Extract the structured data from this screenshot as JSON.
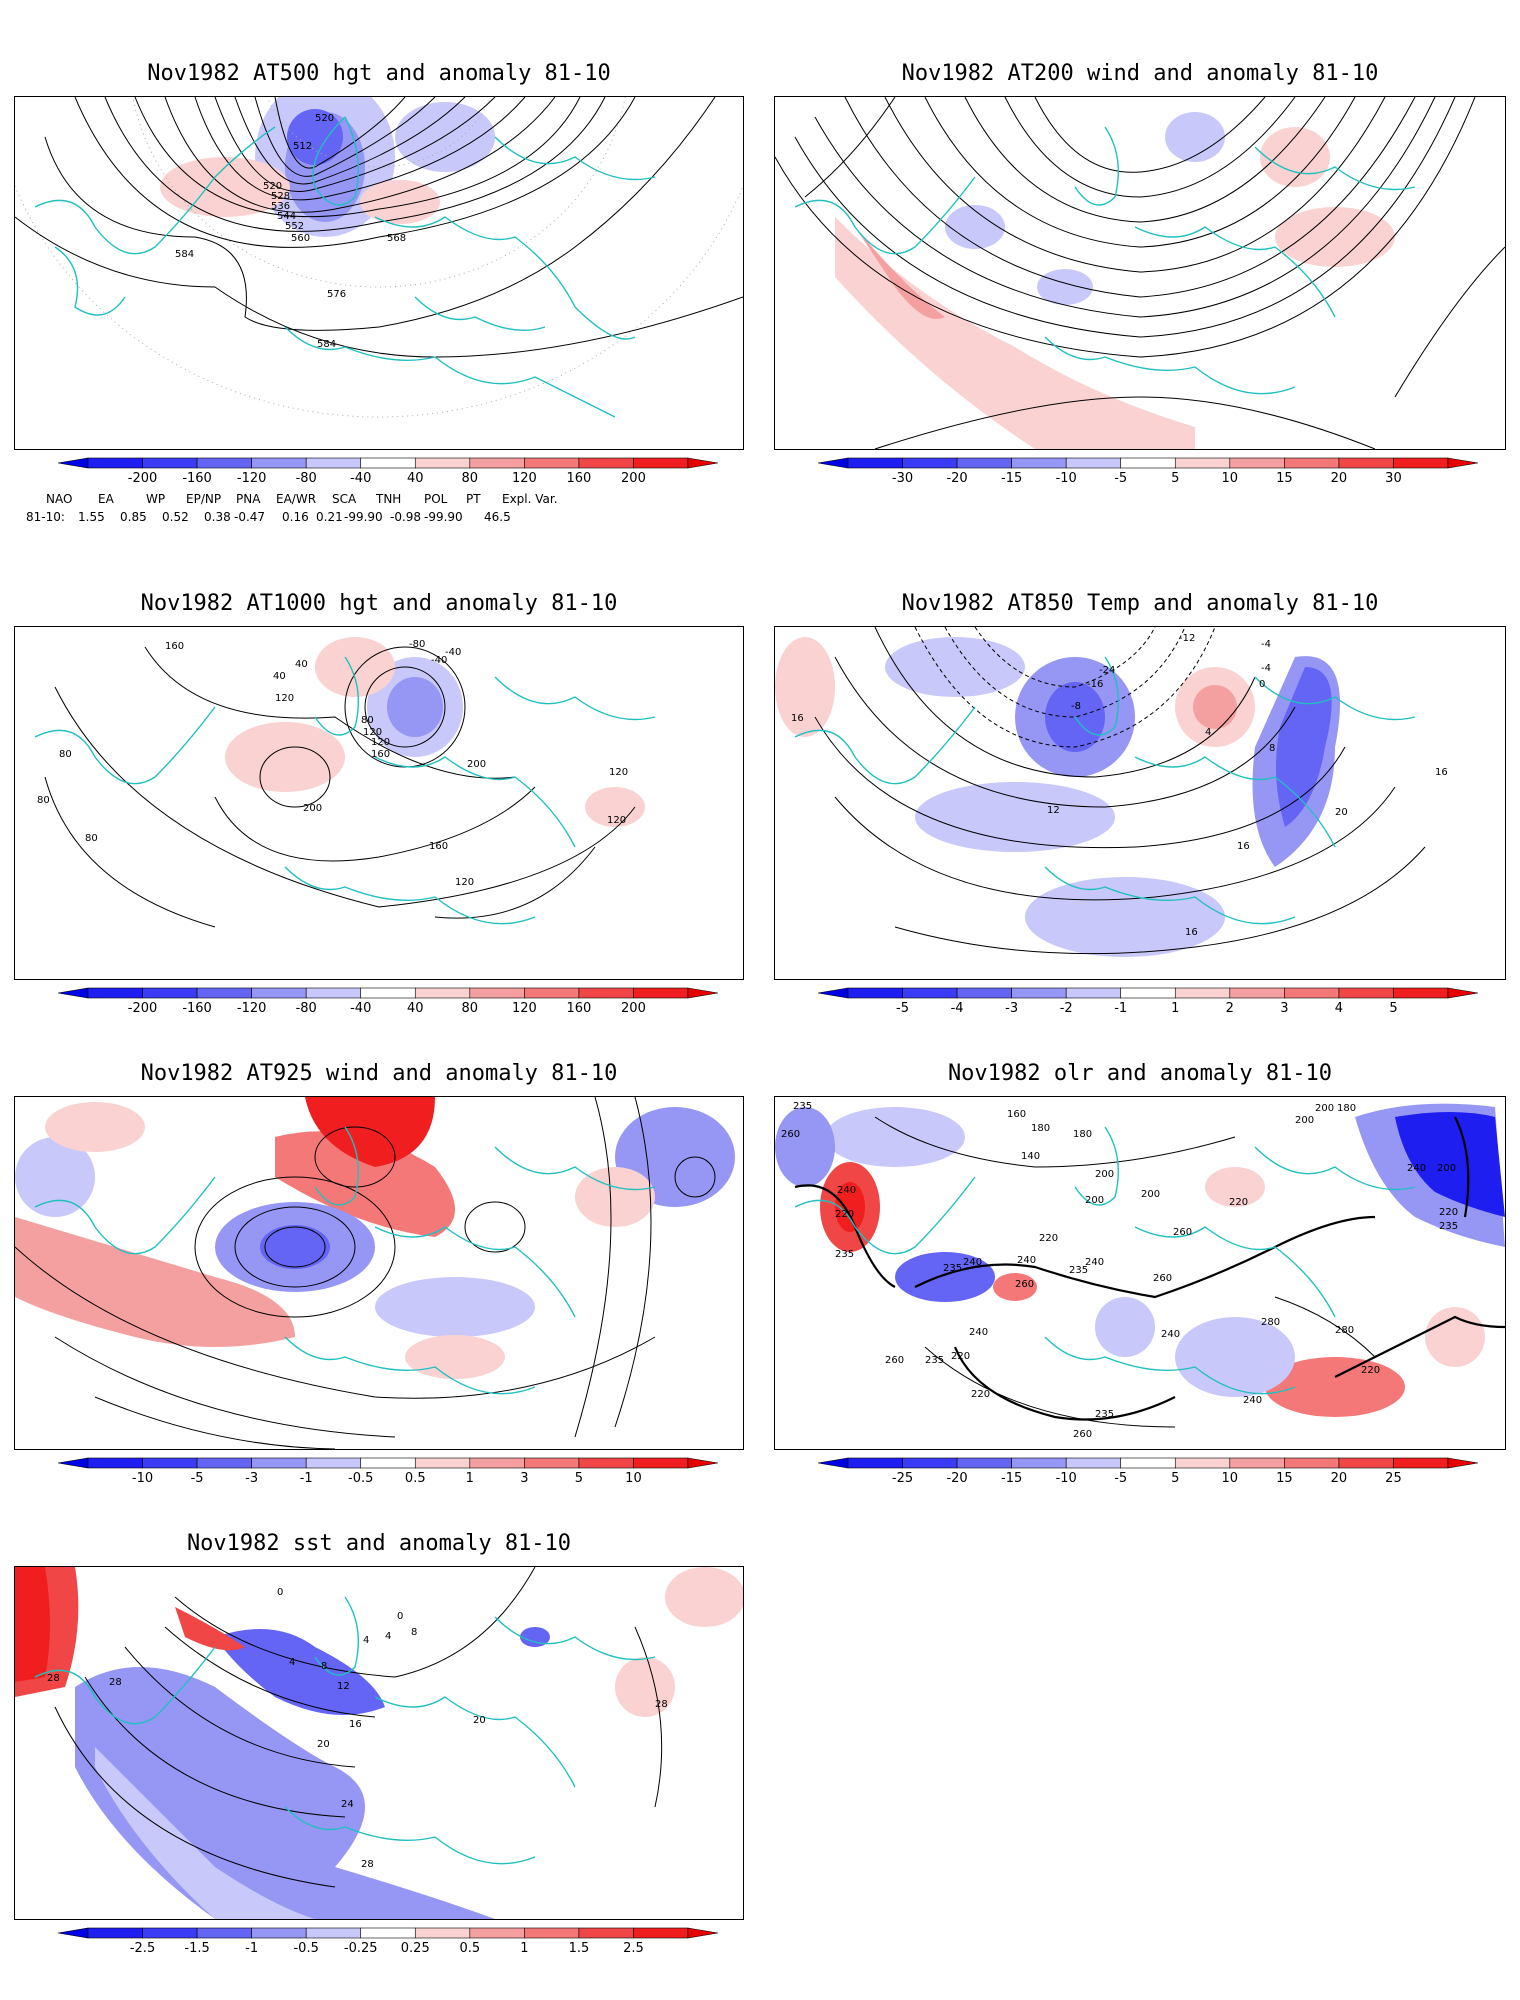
{
  "panels": [
    {
      "id": "p1",
      "title": "Nov1982 AT500 hgt and anomaly 81-10",
      "contour_labels": [
        "520",
        "512",
        "520",
        "528",
        "536",
        "544",
        "552",
        "560",
        "568",
        "584",
        "576",
        "584"
      ],
      "colorbar": [
        "-200",
        "-160",
        "-120",
        "-80",
        "-40",
        "40",
        "80",
        "120",
        "160",
        "200"
      ]
    },
    {
      "id": "p2",
      "title": "Nov1982 AT200 wind and anomaly 81-10",
      "contour_labels": [],
      "colorbar": [
        "-30",
        "-20",
        "-15",
        "-10",
        "-5",
        "5",
        "10",
        "15",
        "20",
        "30"
      ]
    },
    {
      "id": "p3",
      "title": "Nov1982 AT1000 hgt and anomaly 81-10",
      "contour_labels": [
        "160",
        "40",
        "120",
        "-40",
        "-80",
        "-40",
        "80",
        "120",
        "120",
        "160",
        "200",
        "200",
        "80",
        "80",
        "80",
        "160",
        "120",
        "120",
        "120",
        "40"
      ],
      "colorbar": [
        "-200",
        "-160",
        "-120",
        "-80",
        "-40",
        "40",
        "80",
        "120",
        "160",
        "200"
      ]
    },
    {
      "id": "p4",
      "title": "Nov1982 AT850 Temp and anomaly 81-10",
      "contour_labels": [
        "-12",
        "-4",
        "-24",
        "-16",
        "-8",
        "-4",
        "0",
        "4",
        "8",
        "16",
        "12",
        "16",
        "20",
        "16",
        "16"
      ],
      "colorbar": [
        "-5",
        "-4",
        "-3",
        "-2",
        "-1",
        "1",
        "2",
        "3",
        "4",
        "5"
      ]
    },
    {
      "id": "p5",
      "title": "Nov1982 AT925 wind and anomaly 81-10",
      "contour_labels": [],
      "colorbar": [
        "-10",
        "-5",
        "-3",
        "-1",
        "-0.5",
        "0.5",
        "1",
        "3",
        "5",
        "10"
      ]
    },
    {
      "id": "p6",
      "title": "Nov1982 olr and anomaly 81-10",
      "contour_labels": [
        "235",
        "260",
        "200",
        "180",
        "160",
        "180",
        "140",
        "180",
        "200",
        "200",
        "200",
        "220",
        "240",
        "260",
        "240",
        "235",
        "220",
        "240",
        "235",
        "220",
        "260",
        "235",
        "240",
        "260",
        "280",
        "240",
        "260",
        "220",
        "235",
        "240",
        "235",
        "220",
        "260",
        "240",
        "280",
        "220",
        "200",
        "240",
        "200",
        "220",
        "235"
      ],
      "colorbar": [
        "-25",
        "-20",
        "-15",
        "-10",
        "-5",
        "5",
        "10",
        "15",
        "20",
        "25"
      ]
    },
    {
      "id": "p7",
      "title": "Nov1982 sst and anomaly 81-10",
      "contour_labels": [
        "0",
        "0",
        "4",
        "4",
        "8",
        "4",
        "8",
        "12",
        "16",
        "20",
        "20",
        "24",
        "28",
        "28",
        "28",
        "28"
      ],
      "colorbar": [
        "-2.5",
        "-1.5",
        "-1",
        "-0.5",
        "-0.25",
        "0.25",
        "0.5",
        "1",
        "1.5",
        "2.5"
      ]
    }
  ],
  "index_table": {
    "headers": [
      "NAO",
      "EA",
      "WP",
      "EP/NP",
      "PNA",
      "EA/WR",
      "SCA",
      "TNH",
      "POL",
      "PT",
      "Expl. Var."
    ],
    "row_label": "81-10:",
    "values": [
      "1.55",
      "0.85",
      "0.52",
      "0.38",
      "-0.47",
      "0.16",
      "0.21",
      "-99.90",
      "-0.98",
      "-99.90",
      "46.5"
    ]
  },
  "colors": {
    "coast": "#20c0c0",
    "neg": [
      "#1e1ef0",
      "#3b3bf5",
      "#6464f5",
      "#9696f5",
      "#c8c8fa"
    ],
    "pos": [
      "#fad2d2",
      "#f5a0a0",
      "#f57878",
      "#f04646",
      "#f01e1e"
    ]
  }
}
